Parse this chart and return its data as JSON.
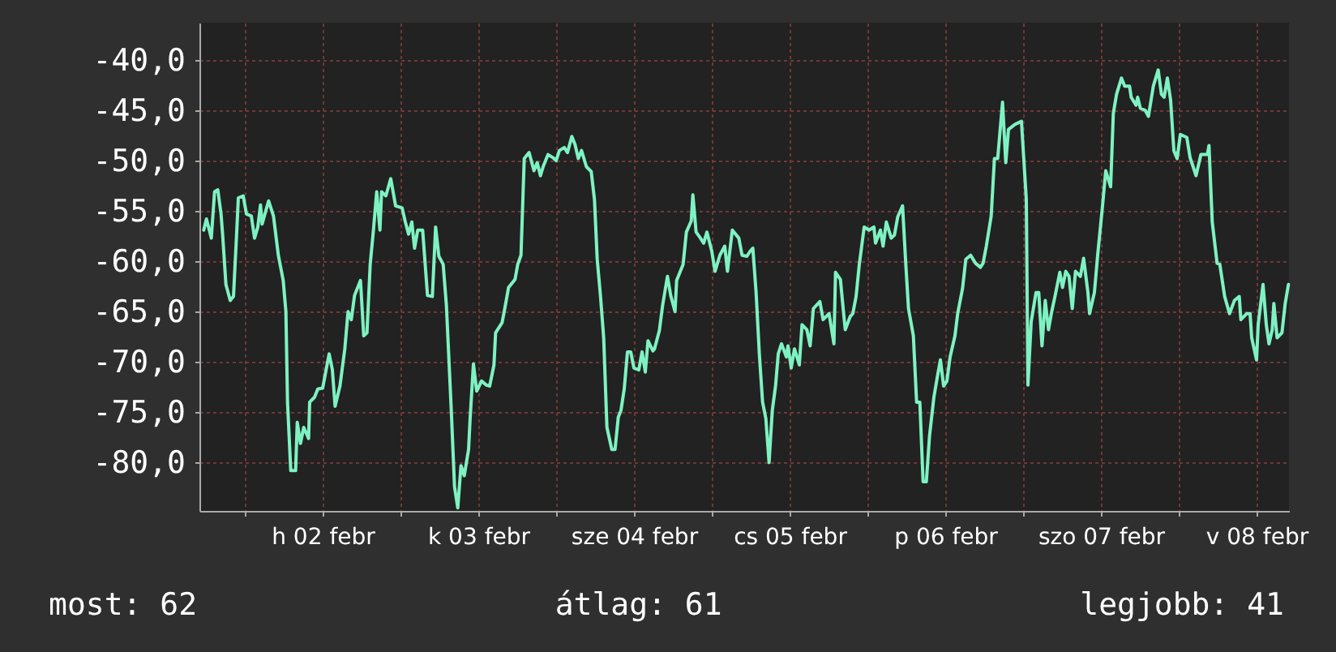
{
  "chart_data": {
    "type": "line",
    "x": [
      "--02-01T17:40",
      "--02-01T18:05",
      "--02-01T18:50",
      "--02-01T19:20",
      "--02-01T19:50",
      "--02-01T20:20",
      "--02-01T20:35",
      "--02-01T21:05",
      "--02-01T21:45",
      "--02-01T22:15",
      "--02-01T22:45",
      "--02-01T23:00",
      "--02-01T23:45",
      "--02-02T00:15",
      "--02-02T01:00",
      "--02-02T01:30",
      "--02-02T02:00",
      "--02-02T02:25",
      "--02-02T02:40",
      "--02-02T03:40",
      "--02-02T04:25",
      "--02-02T05:10",
      "--02-02T05:55",
      "--02-02T06:20",
      "--02-02T06:35",
      "--02-02T07:05",
      "--02-02T07:50",
      "--02-02T08:05",
      "--02-02T08:35",
      "--02-02T09:05",
      "--02-02T09:50",
      "--02-02T10:00",
      "--02-02T10:45",
      "--02-02T11:15",
      "--02-02T12:00",
      "--02-02T13:00",
      "--02-02T13:30",
      "--02-02T13:55",
      "--02-02T14:40",
      "--02-02T15:25",
      "--02-02T15:55",
      "--02-02T16:25",
      "--02-02T16:55",
      "--02-02T17:50",
      "--02-02T18:20",
      "--02-02T18:50",
      "--02-02T19:20",
      "--02-02T19:50",
      "--02-02T20:20",
      "--02-02T20:50",
      "--02-02T21:05",
      "--02-02T21:45",
      "--02-02T22:30",
      "--02-02T23:15",
      "--02-03T00:15",
      "--02-03T00:45",
      "--02-03T01:15",
      "--02-03T01:45",
      "--02-03T02:10",
      "--02-03T02:40",
      "--02-03T03:25",
      "--02-03T04:10",
      "--02-03T04:55",
      "--02-03T05:25",
      "--02-03T05:55",
      "--02-03T06:35",
      "--02-03T07:05",
      "--02-03T07:50",
      "--02-03T08:20",
      "--02-03T08:50",
      "--02-03T09:20",
      "--02-03T09:50",
      "--02-03T10:30",
      "--02-03T10:45",
      "--02-03T11:15",
      "--02-03T11:45",
      "--02-03T12:30",
      "--02-03T13:15",
      "--02-03T13:45",
      "--02-03T14:25",
      "--02-03T14:40",
      "--02-03T15:40",
      "--02-03T16:10",
      "--02-03T16:40",
      "--02-03T17:40",
      "--02-03T18:05",
      "--02-03T18:35",
      "--02-03T19:05",
      "--02-03T19:50",
      "--02-03T20:35",
      "--02-03T21:05",
      "--02-03T21:35",
      "--02-03T22:00",
      "--02-03T22:45",
      "--02-03T23:30",
      "--02-04T00:00",
      "--02-04T00:30",
      "--02-04T01:15",
      "--02-04T01:45",
      "--02-04T02:25",
      "--02-04T02:55",
      "--02-04T03:25",
      "--02-04T03:55",
      "--02-04T04:40",
      "--02-04T05:25",
      "--02-04T05:55",
      "--02-04T06:20",
      "--02-04T06:50",
      "--02-04T07:20",
      "--02-04T07:50",
      "--02-04T08:35",
      "--02-04T09:05",
      "--02-04T09:35",
      "--02-04T10:00",
      "--02-04T10:30",
      "--02-04T11:00",
      "--02-04T11:30",
      "--02-04T12:00",
      "--02-04T12:45",
      "--02-04T13:15",
      "--02-04T13:45",
      "--02-04T14:10",
      "--02-04T14:55",
      "--02-04T15:10",
      "--02-04T15:55",
      "--02-04T16:25",
      "--02-04T17:10",
      "--02-04T17:40",
      "--02-04T18:20",
      "--02-04T18:35",
      "--02-04T19:35",
      "--02-04T20:05",
      "--02-04T20:50",
      "--02-04T21:05",
      "--02-04T21:35",
      "--02-04T22:15",
      "--02-04T22:45",
      "--02-04T23:15",
      "--02-05T00:00",
      "--02-05T00:30",
      "--02-05T01:15",
      "--02-05T02:00",
      "--02-05T02:25",
      "--02-05T03:10",
      "--02-05T04:10",
      "--02-05T04:40",
      "--02-05T05:25",
      "--02-05T05:55",
      "--02-05T06:20",
      "--02-05T06:50",
      "--02-05T07:20",
      "--02-05T07:50",
      "--02-05T08:20",
      "--02-05T08:50",
      "--02-05T09:20",
      "--02-05T09:50",
      "--02-05T10:15",
      "--02-05T10:45",
      "--02-05T11:30",
      "--02-05T11:45",
      "--02-05T12:15",
      "--02-05T12:45",
      "--02-05T13:30",
      "--02-05T13:55",
      "--02-05T14:40",
      "--02-05T15:10",
      "--02-05T15:40",
      "--02-05T16:40",
      "--02-05T17:10",
      "--02-05T18:05",
      "--02-05T18:50",
      "--02-05T19:05",
      "--02-05T19:50",
      "--02-05T20:20",
      "--02-05T20:35",
      "--02-05T21:20",
      "--02-05T21:45",
      "--02-05T22:15",
      "--02-05T22:45",
      "--02-05T23:30",
      "--02-06T00:15",
      "--02-06T01:00",
      "--02-06T01:15",
      "--02-06T02:00",
      "--02-06T02:25",
      "--02-06T02:55",
      "--02-06T03:40",
      "--02-06T04:10",
      "--02-06T04:40",
      "--02-06T05:25",
      "--02-06T05:55",
      "--02-06T06:20",
      "--02-06T07:05",
      "--02-06T07:35",
      "--02-06T08:05",
      "--02-06T08:35",
      "--02-06T09:05",
      "--02-06T09:35",
      "--02-06T10:15",
      "--02-06T10:45",
      "--02-06T11:15",
      "--02-06T11:45",
      "--02-06T12:15",
      "--02-06T12:45",
      "--02-06T13:30",
      "--02-06T13:55",
      "--02-06T14:40",
      "--02-06T15:10",
      "--02-06T15:55",
      "--02-06T16:40",
      "--02-06T17:25",
      "--02-06T17:50",
      "--02-06T18:20",
      "--02-06T19:05",
      "--02-06T19:35",
      "--02-06T20:05",
      "--02-06T20:50",
      "--02-06T21:20",
      "--02-06T21:45",
      "--02-06T22:45",
      "--02-06T23:45",
      "--02-07T00:30",
      "--02-07T00:45",
      "--02-07T01:15",
      "--02-07T02:00",
      "--02-07T02:25",
      "--02-07T02:55",
      "--02-07T03:25",
      "--02-07T03:55",
      "--02-07T04:25",
      "--02-07T04:55",
      "--02-07T05:40",
      "--02-07T06:05",
      "--02-07T06:35",
      "--02-07T07:05",
      "--02-07T07:35",
      "--02-07T08:05",
      "--02-07T08:50",
      "--02-07T09:20",
      "--02-07T10:00",
      "--02-07T10:15",
      "--02-07T11:00",
      "--02-07T11:30",
      "--02-07T12:15",
      "--02-07T12:45",
      "--02-07T13:30",
      "--02-07T13:55",
      "--02-07T14:25",
      "--02-07T15:10",
      "--02-07T15:40",
      "--02-07T16:25",
      "--02-07T16:40",
      "--02-07T17:25",
      "--02-07T17:40",
      "--02-07T18:05",
      "--02-07T18:50",
      "--02-07T19:20",
      "--02-07T20:05",
      "--02-07T20:50",
      "--02-07T21:20",
      "--02-07T21:45",
      "--02-07T22:15",
      "--02-07T22:45",
      "--02-07T23:15",
      "--02-07T23:45",
      "--02-08T00:15",
      "--02-08T01:15",
      "--02-08T01:45",
      "--02-08T02:10",
      "--02-08T02:40",
      "--02-08T03:25",
      "--02-08T04:25",
      "--02-08T04:40",
      "--02-08T05:10",
      "--02-08T05:55",
      "--02-08T06:20",
      "--02-08T07:05",
      "--02-08T07:50",
      "--02-08T08:35",
      "--02-08T09:20",
      "--02-08T09:35",
      "--02-08T10:30",
      "--02-08T11:00",
      "--02-08T11:15",
      "--02-08T12:00",
      "--02-08T12:15",
      "--02-08T13:00",
      "--02-08T13:30",
      "--02-08T13:55",
      "--02-08T14:25",
      "--02-08T14:40",
      "--02-08T15:10",
      "--02-08T15:55",
      "--02-08T16:25",
      "--02-08T16:55"
    ],
    "series": [
      {
        "color": "#7ef2c2",
        "values": [
          -56.9,
          -55.8,
          -57.7,
          -53.1,
          -52.9,
          -55.3,
          -57.4,
          -62.3,
          -63.9,
          -63.5,
          -57.1,
          -53.7,
          -53.5,
          -55.3,
          -55.5,
          -57.7,
          -56.6,
          -54.4,
          -56.3,
          -54.0,
          -55.5,
          -59.4,
          -61.9,
          -65.0,
          -74.0,
          -80.8,
          -80.8,
          -76.0,
          -78.1,
          -76.5,
          -77.6,
          -74.0,
          -73.5,
          -72.7,
          -72.6,
          -69.2,
          -70.8,
          -74.4,
          -72.4,
          -68.7,
          -65.0,
          -65.8,
          -63.4,
          -61.9,
          -67.4,
          -67.1,
          -60.3,
          -56.9,
          -53.1,
          -56.9,
          -53.1,
          -53.5,
          -51.8,
          -54.5,
          -54.7,
          -56.1,
          -57.3,
          -56.1,
          -58.7,
          -56.9,
          -56.9,
          -63.4,
          -63.5,
          -56.6,
          -59.5,
          -60.3,
          -64.4,
          -74.8,
          -82.4,
          -84.5,
          -80.3,
          -81.3,
          -78.7,
          -75.5,
          -70.2,
          -72.9,
          -71.9,
          -72.3,
          -72.4,
          -70.3,
          -67.1,
          -66.1,
          -64.4,
          -62.6,
          -61.8,
          -60.3,
          -59.4,
          -49.8,
          -49.2,
          -51.0,
          -50.2,
          -51.5,
          -50.6,
          -49.4,
          -49.7,
          -50.0,
          -49.0,
          -48.7,
          -49.2,
          -47.6,
          -48.4,
          -49.8,
          -49.0,
          -50.6,
          -51.1,
          -53.9,
          -59.8,
          -63.4,
          -67.6,
          -76.5,
          -78.7,
          -78.7,
          -75.5,
          -74.8,
          -72.7,
          -69.0,
          -69.0,
          -70.6,
          -70.8,
          -69.0,
          -71.0,
          -67.9,
          -68.9,
          -68.7,
          -66.9,
          -64.4,
          -61.5,
          -63.4,
          -65.0,
          -61.9,
          -60.3,
          -57.1,
          -56.0,
          -53.4,
          -57.1,
          -57.7,
          -58.2,
          -57.1,
          -59.0,
          -61.0,
          -59.4,
          -58.5,
          -61.0,
          -56.9,
          -57.7,
          -59.4,
          -59.5,
          -59.0,
          -58.7,
          -63.1,
          -69.2,
          -74.0,
          -75.6,
          -80.0,
          -74.8,
          -72.4,
          -69.2,
          -68.2,
          -69.5,
          -68.4,
          -70.6,
          -68.7,
          -70.3,
          -66.3,
          -66.8,
          -68.4,
          -64.7,
          -64.0,
          -65.8,
          -65.2,
          -68.2,
          -61.1,
          -61.8,
          -65.2,
          -66.8,
          -65.5,
          -65.2,
          -63.5,
          -60.3,
          -56.6,
          -56.9,
          -56.6,
          -58.2,
          -56.9,
          -58.5,
          -56.1,
          -57.7,
          -57.4,
          -55.6,
          -54.5,
          -60.3,
          -64.7,
          -67.4,
          -74.0,
          -74.0,
          -81.9,
          -81.9,
          -77.3,
          -73.5,
          -71.6,
          -69.8,
          -72.4,
          -71.9,
          -69.5,
          -67.4,
          -65.2,
          -62.7,
          -59.8,
          -59.4,
          -60.2,
          -60.6,
          -60.2,
          -58.5,
          -55.5,
          -49.8,
          -49.8,
          -44.2,
          -50.2,
          -46.9,
          -46.4,
          -46.1,
          -53.9,
          -72.3,
          -66.0,
          -63.1,
          -63.1,
          -68.4,
          -63.9,
          -66.8,
          -65.0,
          -63.5,
          -61.1,
          -62.6,
          -61.0,
          -61.5,
          -64.7,
          -61.0,
          -61.5,
          -59.7,
          -63.1,
          -65.2,
          -63.1,
          -59.4,
          -54.5,
          -51.0,
          -52.6,
          -45.3,
          -43.4,
          -41.8,
          -42.6,
          -42.6,
          -43.7,
          -44.5,
          -43.7,
          -44.8,
          -45.0,
          -45.6,
          -42.6,
          -41.0,
          -43.4,
          -43.7,
          -41.8,
          -44.0,
          -49.0,
          -49.8,
          -47.4,
          -47.7,
          -49.7,
          -50.5,
          -51.5,
          -49.4,
          -49.4,
          -48.5,
          -56.1,
          -60.2,
          -60.3,
          -63.5,
          -65.2,
          -63.9,
          -63.5,
          -65.8,
          -65.2,
          -65.2,
          -67.6,
          -69.8,
          -66.3,
          -62.3,
          -66.3,
          -68.2,
          -66.8,
          -64.2,
          -67.6,
          -67.1,
          -64.2,
          -62.3
        ]
      }
    ],
    "xlim": [
      "--02-01T17:00",
      "--02-08T17:00"
    ],
    "xticks": [
      {
        "value": "--02-02T00:00",
        "label": null
      },
      {
        "value": "--02-02T12:00",
        "label": "h 02 febr"
      },
      {
        "value": "--02-03T00:00",
        "label": null
      },
      {
        "value": "--02-03T12:00",
        "label": "k 03 febr"
      },
      {
        "value": "--02-04T00:00",
        "label": null
      },
      {
        "value": "--02-04T12:00",
        "label": "sze 04 febr"
      },
      {
        "value": "--02-05T00:00",
        "label": null
      },
      {
        "value": "--02-05T12:00",
        "label": "cs 05 febr"
      },
      {
        "value": "--02-06T00:00",
        "label": null
      },
      {
        "value": "--02-06T12:00",
        "label": "p 06 febr"
      },
      {
        "value": "--02-07T00:00",
        "label": null
      },
      {
        "value": "--02-07T12:00",
        "label": "szo 07 febr"
      },
      {
        "value": "--02-08T00:00",
        "label": null
      },
      {
        "value": "--02-08T12:00",
        "label": "v 08 febr"
      }
    ],
    "ylim": [
      -84.8,
      -36.3
    ],
    "yticks": [
      {
        "value": -80,
        "label": "-80,0"
      },
      {
        "value": -75,
        "label": "-75,0"
      },
      {
        "value": -70,
        "label": "-70,0"
      },
      {
        "value": -65,
        "label": "-65,0"
      },
      {
        "value": -60,
        "label": "-60,0"
      },
      {
        "value": -55,
        "label": "-55,0"
      },
      {
        "value": -50,
        "label": "-50,0"
      },
      {
        "value": -45,
        "label": "-45,0"
      },
      {
        "value": -40,
        "label": "-40,0"
      }
    ],
    "grid": true,
    "annotations": [
      "most: 62",
      "átlag: 61",
      "legjobb: 41"
    ]
  }
}
